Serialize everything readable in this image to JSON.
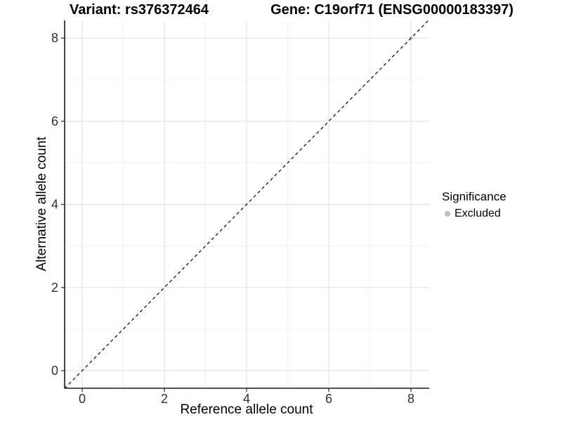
{
  "titles": {
    "variant": "Variant: rs376372464",
    "gene": "Gene: C19orf71 (ENSG00000183397)"
  },
  "axes": {
    "x_label": "Reference allele count",
    "y_label": "Alternative allele count"
  },
  "legend": {
    "title": "Significance",
    "items": [
      {
        "label": "Excluded",
        "color": "#bebebe"
      }
    ]
  },
  "chart_data": {
    "type": "scatter",
    "title": "Variant: rs376372464        Gene: C19orf71 (ENSG00000183397)",
    "xlabel": "Reference allele count",
    "ylabel": "Alternative allele count",
    "x_ticks": [
      0,
      2,
      4,
      6,
      8
    ],
    "y_ticks": [
      0,
      2,
      4,
      6,
      8
    ],
    "x_minor_ticks": [
      1,
      3,
      5,
      7
    ],
    "y_minor_ticks": [
      1,
      3,
      5,
      7
    ],
    "xlim": [
      -0.43,
      8.44
    ],
    "ylim": [
      -0.43,
      8.44
    ],
    "grid": true,
    "legend_position": "right",
    "series": [
      {
        "name": "Excluded",
        "color": "#bebebe",
        "points": [
          {
            "x": 8,
            "y": 8
          }
        ]
      }
    ],
    "reference_line": {
      "kind": "identity",
      "slope": 1,
      "intercept": 0,
      "style": "dashed",
      "color": "#000000"
    },
    "colors": {
      "grid_major": "#e3e3e3",
      "grid_minor": "#f1f1f1",
      "axis_line": "#1a1a1a",
      "tick_mark": "#333333",
      "tick_label": "#303030",
      "point": "#bebebe"
    }
  }
}
